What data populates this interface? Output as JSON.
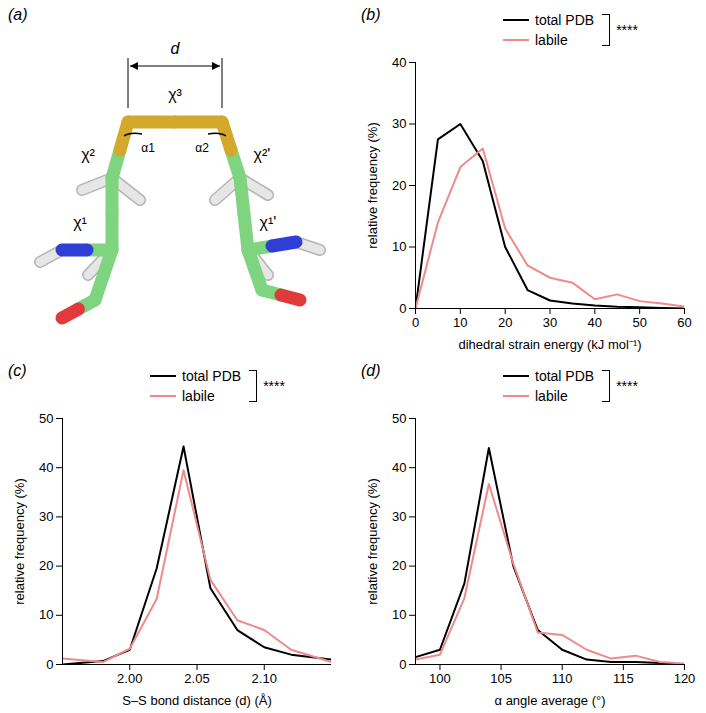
{
  "chart_data": [
    {
      "type": "diagram",
      "panel": "(a)",
      "labels": {
        "d": "d",
        "chi3": "χ³",
        "chi2": "χ²",
        "chi2p": "χ²'",
        "chi1": "χ¹",
        "chi1p": "χ¹'",
        "alpha1": "α1",
        "alpha2": "α2"
      }
    },
    {
      "type": "line",
      "panel": "(b)",
      "annotation": "****",
      "x_label": "dihedral strain energy (kJ mol⁻¹)",
      "y_label": "relative frequency (%)",
      "x": [
        0,
        5,
        10,
        15,
        20,
        25,
        30,
        35,
        40,
        45,
        50,
        55,
        60
      ],
      "xlim": [
        0,
        60
      ],
      "xticks": [
        0,
        10,
        20,
        30,
        40,
        50,
        60
      ],
      "ylim": [
        0,
        40
      ],
      "yticks": [
        0,
        10,
        20,
        30,
        40
      ],
      "series": [
        {
          "name": "total PDB",
          "color": "#000000",
          "values": [
            0,
            27.5,
            30,
            24,
            10,
            3,
            1.3,
            0.8,
            0.5,
            0.3,
            0.2,
            0.1,
            0
          ]
        },
        {
          "name": "labile",
          "color": "#f08a8a",
          "values": [
            0,
            14,
            23,
            26,
            13,
            7,
            5,
            4.2,
            1.5,
            2.3,
            1.2,
            0.8,
            0.3
          ]
        }
      ]
    },
    {
      "type": "line",
      "panel": "(c)",
      "annotation": "****",
      "x_label": "S–S bond distance (d) (Å)",
      "y_label": "relative frequency (%)",
      "x": [
        1.95,
        1.98,
        2.0,
        2.02,
        2.04,
        2.06,
        2.08,
        2.1,
        2.12,
        2.15
      ],
      "xlim": [
        1.95,
        2.15
      ],
      "xticks": [
        {
          "value": 2.0,
          "label": "2.00"
        },
        {
          "value": 2.05,
          "label": "2.05"
        },
        {
          "value": 2.1,
          "label": "2.10"
        }
      ],
      "ylim": [
        0,
        50
      ],
      "yticks": [
        0,
        10,
        20,
        30,
        40,
        50
      ],
      "series": [
        {
          "name": "total PDB",
          "color": "#000000",
          "values": [
            0,
            0.7,
            3,
            19.5,
            44.3,
            15.5,
            7,
            3.5,
            2,
            1
          ]
        },
        {
          "name": "labile",
          "color": "#f08a8a",
          "values": [
            1.2,
            0.5,
            3.2,
            13.3,
            39.5,
            17.2,
            9,
            7,
            3,
            0.5
          ]
        }
      ]
    },
    {
      "type": "line",
      "panel": "(d)",
      "annotation": "****",
      "x_label": "α angle average (°)",
      "y_label": "relative frequency (%)",
      "x": [
        98,
        100,
        102,
        104,
        106,
        108,
        110,
        112,
        114,
        116,
        118,
        120
      ],
      "xlim": [
        98,
        120
      ],
      "xticks": [
        100,
        105,
        110,
        115,
        120
      ],
      "ylim": [
        0,
        50
      ],
      "yticks": [
        0,
        10,
        20,
        30,
        40,
        50
      ],
      "series": [
        {
          "name": "total PDB",
          "color": "#000000",
          "values": [
            1.5,
            3,
            16.5,
            44,
            20,
            7,
            3,
            1,
            0.5,
            0.5,
            0.3,
            0
          ]
        },
        {
          "name": "labile",
          "color": "#f08a8a",
          "values": [
            1,
            2,
            13.5,
            36.7,
            20.5,
            6.5,
            6,
            3,
            1.2,
            1.8,
            0.5,
            0.2
          ]
        }
      ]
    }
  ]
}
